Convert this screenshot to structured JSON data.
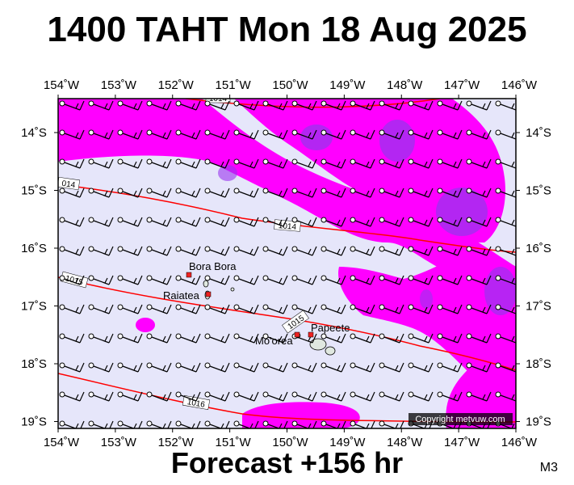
{
  "title": "1400 TAHT Mon 18 Aug 2025",
  "footer": "Forecast +156 hr",
  "model": "M3",
  "copyright": "Copyright metvuw.com",
  "lon_labels": [
    "154˚W",
    "153˚W",
    "152˚W",
    "151˚W",
    "150˚W",
    "149˚W",
    "148˚W",
    "147˚W",
    "146˚W"
  ],
  "lat_labels": [
    "14˚S",
    "15˚S",
    "16˚S",
    "17˚S",
    "18˚S",
    "19˚S"
  ],
  "isobars": [
    {
      "label": "1014",
      "value": 1014
    },
    {
      "label": "1015",
      "value": 1015
    },
    {
      "label": "1016",
      "value": 1016
    }
  ],
  "places": [
    {
      "name": "Bora Bora"
    },
    {
      "name": "Raiatea"
    },
    {
      "name": "Mo'orea"
    },
    {
      "name": "Papeete"
    }
  ],
  "colors": {
    "background": "#e6e6fa",
    "rain_light": "#ff00ff",
    "rain_heavy": "#9933ee",
    "isobar": "#ff0000",
    "land": "#2e8b57"
  }
}
